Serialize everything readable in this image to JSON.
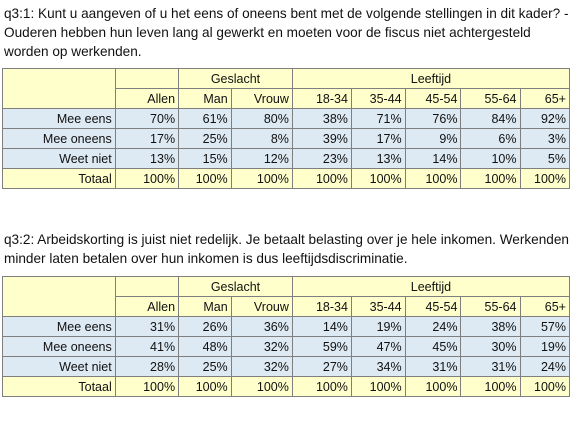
{
  "tables": [
    {
      "question": "q3:1: Kunt u aangeven of u het eens of oneens bent met de volgende stellingen in dit kader? - Ouderen hebben hun leven lang al gewerkt en moeten voor de fiscus niet achtergesteld worden op werkenden.",
      "group_headers": {
        "gender": "Geslacht",
        "age": "Leeftijd"
      },
      "columns": [
        "Allen",
        "Man",
        "Vrouw",
        "18-34",
        "35-44",
        "45-54",
        "55-64",
        "65+"
      ],
      "rows": [
        {
          "label": "Mee eens",
          "values": [
            "70%",
            "61%",
            "80%",
            "38%",
            "71%",
            "76%",
            "84%",
            "92%"
          ]
        },
        {
          "label": "Mee oneens",
          "values": [
            "17%",
            "25%",
            "8%",
            "39%",
            "17%",
            "9%",
            "6%",
            "3%"
          ]
        },
        {
          "label": "Weet niet",
          "values": [
            "13%",
            "15%",
            "12%",
            "23%",
            "13%",
            "14%",
            "10%",
            "5%"
          ]
        },
        {
          "label": "Totaal",
          "values": [
            "100%",
            "100%",
            "100%",
            "100%",
            "100%",
            "100%",
            "100%",
            "100%"
          ]
        }
      ]
    },
    {
      "question": "q3:2: Arbeidskorting is juist niet redelijk. Je betaalt belasting over je hele inkomen. Werkenden minder laten betalen over hun inkomen is dus leeftijdsdiscriminatie.",
      "group_headers": {
        "gender": "Geslacht",
        "age": "Leeftijd"
      },
      "columns": [
        "Allen",
        "Man",
        "Vrouw",
        "18-34",
        "35-44",
        "45-54",
        "55-64",
        "65+"
      ],
      "rows": [
        {
          "label": "Mee eens",
          "values": [
            "31%",
            "26%",
            "36%",
            "14%",
            "19%",
            "24%",
            "38%",
            "57%"
          ]
        },
        {
          "label": "Mee oneens",
          "values": [
            "41%",
            "48%",
            "32%",
            "59%",
            "47%",
            "45%",
            "30%",
            "19%"
          ]
        },
        {
          "label": "Weet niet",
          "values": [
            "28%",
            "25%",
            "32%",
            "27%",
            "34%",
            "31%",
            "31%",
            "24%"
          ]
        },
        {
          "label": "Totaal",
          "values": [
            "100%",
            "100%",
            "100%",
            "100%",
            "100%",
            "100%",
            "100%",
            "100%"
          ]
        }
      ]
    }
  ],
  "colors": {
    "header_fill": "#ffffcc",
    "row_fill": "#dde9f3",
    "border": "#7f7f7f"
  }
}
